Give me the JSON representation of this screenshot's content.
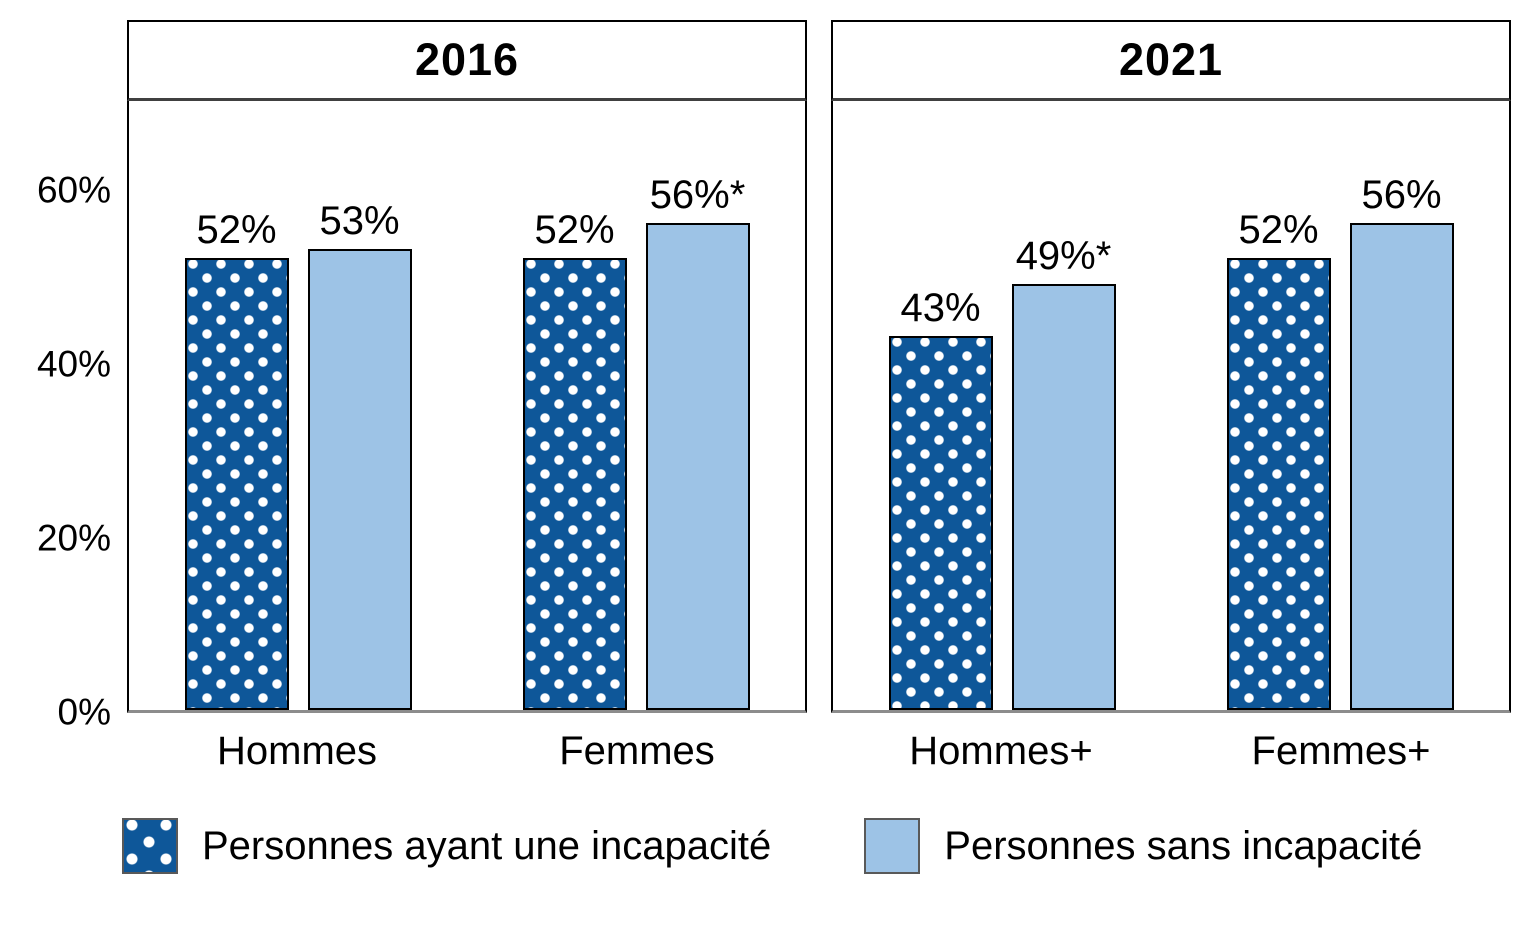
{
  "chart_data": {
    "type": "bar",
    "title": "",
    "xlabel": "",
    "ylabel": "",
    "ylim": [
      0,
      70
    ],
    "grid": false,
    "legend_position": "bottom",
    "y_ticks": [
      {
        "value": 0,
        "label": "0%"
      },
      {
        "value": 20,
        "label": "20%"
      },
      {
        "value": 40,
        "label": "40%"
      },
      {
        "value": 60,
        "label": "60%"
      }
    ],
    "colors": {
      "incapacite_dark_blue": "#0E5799",
      "sans_incapacite_light_blue": "#9DC3E6",
      "panel_border": "#000000",
      "header_separator": "#404040",
      "axis_line": "#8C8C8C"
    },
    "legend": [
      {
        "name": "Personnes ayant une incapacité",
        "style": "dotted-dark-blue"
      },
      {
        "name": "Personnes sans incapacité",
        "style": "solid-light-blue"
      }
    ],
    "facets": [
      {
        "title": "2016",
        "groups": [
          {
            "category": "Hommes",
            "bars": [
              {
                "series": "Personnes ayant une incapacité",
                "value": 52,
                "label": "52%"
              },
              {
                "series": "Personnes sans incapacité",
                "value": 53,
                "label": "53%"
              }
            ]
          },
          {
            "category": "Femmes",
            "bars": [
              {
                "series": "Personnes ayant une incapacité",
                "value": 52,
                "label": "52%"
              },
              {
                "series": "Personnes sans incapacité",
                "value": 56,
                "label": "56%*"
              }
            ]
          }
        ]
      },
      {
        "title": "2021",
        "groups": [
          {
            "category": "Hommes+",
            "bars": [
              {
                "series": "Personnes ayant une incapacité",
                "value": 43,
                "label": "43%"
              },
              {
                "series": "Personnes sans incapacité",
                "value": 49,
                "label": "49%*"
              }
            ]
          },
          {
            "category": "Femmes+",
            "bars": [
              {
                "series": "Personnes ayant une incapacité",
                "value": 52,
                "label": "52%"
              },
              {
                "series": "Personnes sans incapacité",
                "value": 56,
                "label": "56%"
              }
            ]
          }
        ]
      }
    ]
  }
}
